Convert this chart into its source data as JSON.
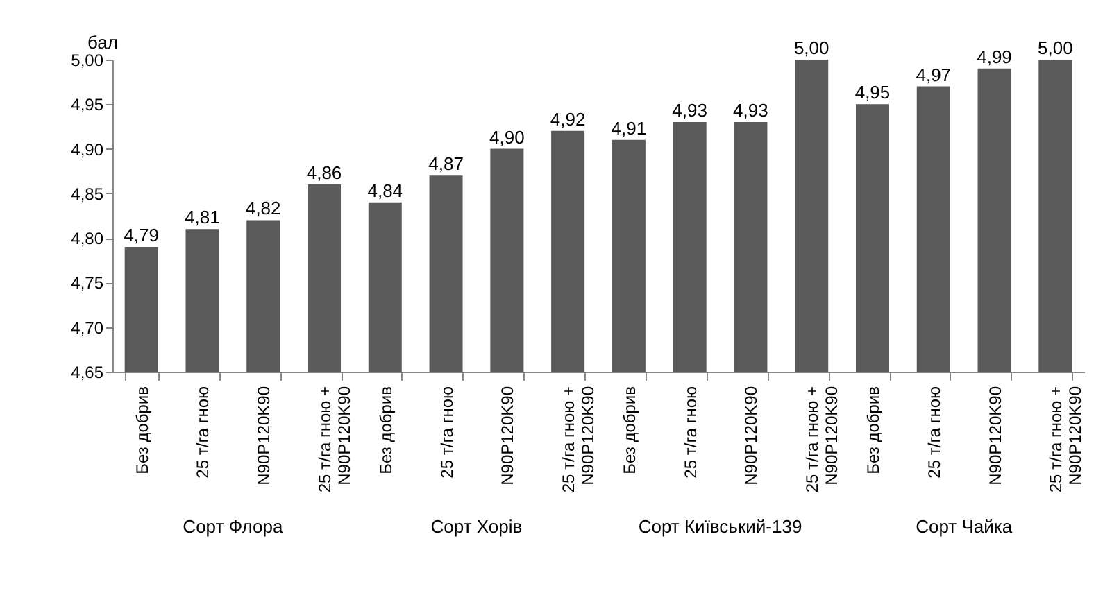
{
  "chart_data": {
    "type": "bar",
    "ylabel": "бал",
    "categories": [
      "Без добрив",
      "25 т/га гною",
      "N90P120K90",
      "25 т/га гною + N90P120K90",
      "Без добрив",
      "25 т/га гною",
      "N90P120K90",
      "25 т/га гною + N90P120K90",
      "Без добрив",
      "25 т/га гною",
      "N90P120K90",
      "25 т/га гною + N90P120K90",
      "Без добрив",
      "25 т/га гною",
      "N90P120K90",
      "25 т/га гною + N90P120K90"
    ],
    "values": [
      4.79,
      4.81,
      4.82,
      4.86,
      4.84,
      4.87,
      4.9,
      4.92,
      4.91,
      4.93,
      4.93,
      5.0,
      4.95,
      4.97,
      4.99,
      5.0
    ],
    "value_labels": [
      "4,79",
      "4,81",
      "4,82",
      "4,86",
      "4,84",
      "4,87",
      "4,90",
      "4,92",
      "4,91",
      "4,93",
      "4,93",
      "5,00",
      "4,95",
      "4,97",
      "4,99",
      "5,00"
    ],
    "color": "#5a5a5a",
    "ylim": [
      4.65,
      5.0
    ],
    "yticks": [
      {
        "value": 4.65,
        "label": "4,65"
      },
      {
        "value": 4.7,
        "label": "4,70"
      },
      {
        "value": 4.75,
        "label": "4,75"
      },
      {
        "value": 4.8,
        "label": "4,80"
      },
      {
        "value": 4.85,
        "label": "4,85"
      },
      {
        "value": 4.9,
        "label": "4,90"
      },
      {
        "value": 4.95,
        "label": "4,95"
      },
      {
        "value": 5.0,
        "label": "5,00"
      }
    ],
    "annotations": [
      "Сорт Флора",
      "Сорт Хорів",
      "Сорт Київський-139",
      "Сорт Чайка"
    ],
    "grid": false
  }
}
